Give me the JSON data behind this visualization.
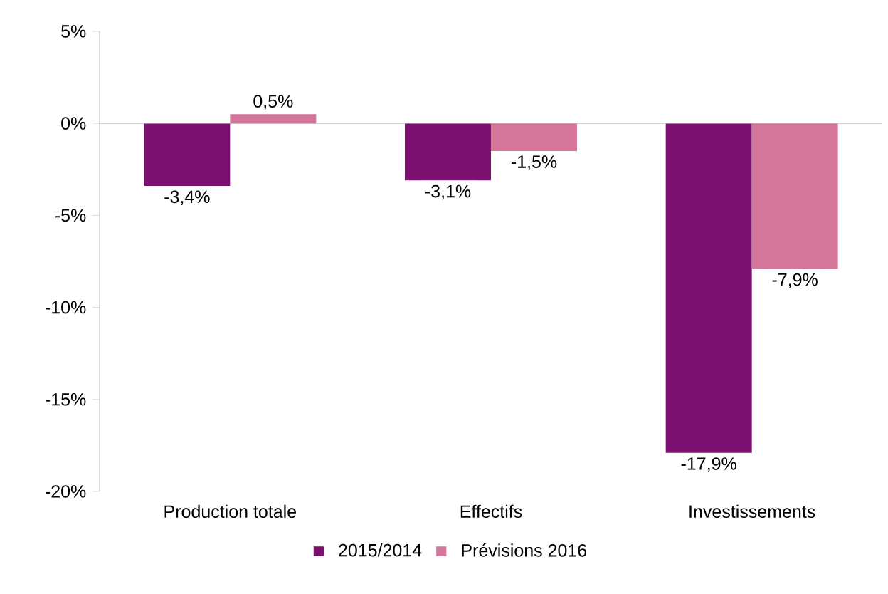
{
  "chart_data": {
    "type": "bar",
    "categories": [
      "Production totale",
      "Effectifs",
      "Investissements"
    ],
    "series": [
      {
        "name": "2015/2014",
        "color": "#7b1070",
        "values": [
          -3.4,
          -3.1,
          -17.9
        ],
        "value_labels": [
          "-3,4%",
          "-3,1%",
          "-17,9%"
        ]
      },
      {
        "name": "Prévisions 2016",
        "color": "#d4769a",
        "values": [
          0.5,
          -1.5,
          -7.9
        ],
        "value_labels": [
          "0,5%",
          "-1,5%",
          "-7,9%"
        ]
      }
    ],
    "ylim": [
      -20,
      5
    ],
    "yticks": [
      {
        "value": -20,
        "label": "-20%"
      },
      {
        "value": -15,
        "label": "-15%"
      },
      {
        "value": -10,
        "label": "-10%"
      },
      {
        "value": -5,
        "label": "-5%"
      },
      {
        "value": 0,
        "label": "0%"
      },
      {
        "value": 5,
        "label": "5%"
      }
    ],
    "legend": "bottom"
  }
}
